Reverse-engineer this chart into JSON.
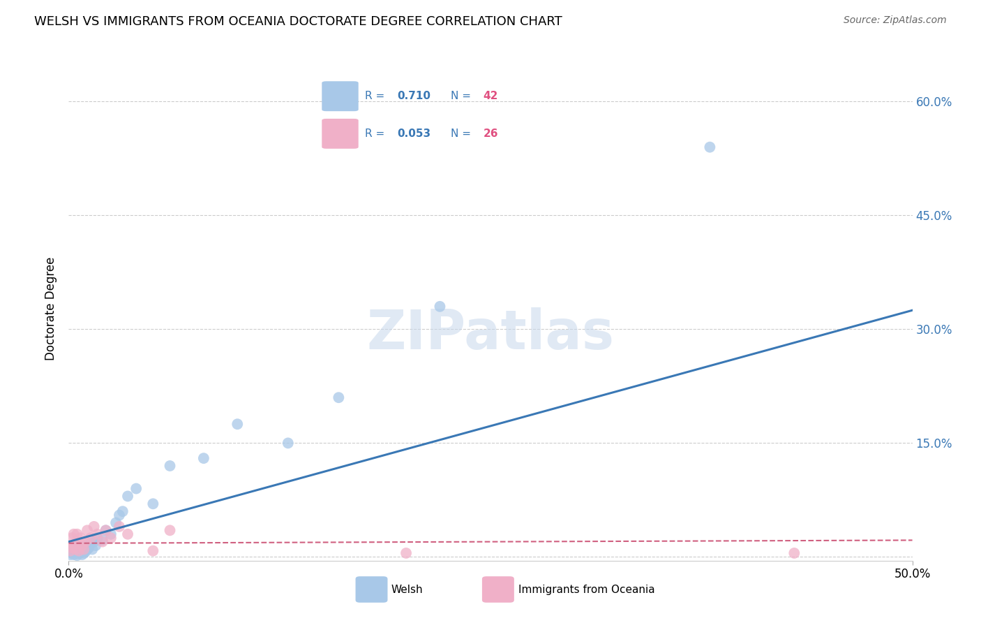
{
  "title": "WELSH VS IMMIGRANTS FROM OCEANIA DOCTORATE DEGREE CORRELATION CHART",
  "source": "Source: ZipAtlas.com",
  "ylabel": "Doctorate Degree",
  "y_ticks": [
    0.0,
    0.15,
    0.3,
    0.45,
    0.6
  ],
  "y_tick_labels": [
    "",
    "15.0%",
    "30.0%",
    "45.0%",
    "60.0%"
  ],
  "x_lim": [
    0.0,
    0.5
  ],
  "y_lim": [
    -0.005,
    0.66
  ],
  "welsh_R": "0.710",
  "welsh_N": "42",
  "oceania_R": "0.053",
  "oceania_N": "26",
  "welsh_color": "#a8c8e8",
  "welsh_line_color": "#3a78b5",
  "oceania_color": "#f0b0c8",
  "oceania_line_color": "#d06080",
  "legend_R_color": "#3a78b5",
  "legend_N_color": "#e05080",
  "background_color": "#ffffff",
  "grid_color": "#cccccc",
  "watermark": "ZIPatlas",
  "welsh_line_x": [
    0.0,
    0.5
  ],
  "welsh_line_y": [
    0.02,
    0.325
  ],
  "oceania_line_x": [
    0.0,
    0.5
  ],
  "oceania_line_y": [
    0.018,
    0.022
  ],
  "welsh_x": [
    0.001,
    0.002,
    0.002,
    0.003,
    0.003,
    0.004,
    0.004,
    0.005,
    0.005,
    0.005,
    0.006,
    0.006,
    0.007,
    0.007,
    0.008,
    0.008,
    0.009,
    0.01,
    0.01,
    0.011,
    0.012,
    0.013,
    0.014,
    0.015,
    0.016,
    0.017,
    0.02,
    0.022,
    0.025,
    0.028,
    0.03,
    0.032,
    0.035,
    0.04,
    0.05,
    0.06,
    0.08,
    0.1,
    0.13,
    0.16,
    0.22,
    0.38
  ],
  "welsh_y": [
    0.003,
    0.005,
    0.01,
    0.003,
    0.008,
    0.005,
    0.012,
    0.002,
    0.007,
    0.015,
    0.004,
    0.01,
    0.006,
    0.012,
    0.003,
    0.008,
    0.005,
    0.007,
    0.015,
    0.01,
    0.012,
    0.018,
    0.01,
    0.02,
    0.015,
    0.025,
    0.022,
    0.035,
    0.03,
    0.045,
    0.055,
    0.06,
    0.08,
    0.09,
    0.07,
    0.12,
    0.13,
    0.175,
    0.15,
    0.21,
    0.33,
    0.54
  ],
  "oceania_x": [
    0.001,
    0.002,
    0.002,
    0.003,
    0.003,
    0.004,
    0.005,
    0.005,
    0.006,
    0.007,
    0.008,
    0.009,
    0.01,
    0.011,
    0.013,
    0.015,
    0.017,
    0.02,
    0.022,
    0.025,
    0.03,
    0.035,
    0.05,
    0.06,
    0.2,
    0.43
  ],
  "oceania_y": [
    0.008,
    0.012,
    0.025,
    0.015,
    0.03,
    0.01,
    0.02,
    0.03,
    0.008,
    0.025,
    0.015,
    0.01,
    0.02,
    0.035,
    0.025,
    0.04,
    0.03,
    0.02,
    0.035,
    0.025,
    0.04,
    0.03,
    0.008,
    0.035,
    0.005,
    0.005
  ]
}
